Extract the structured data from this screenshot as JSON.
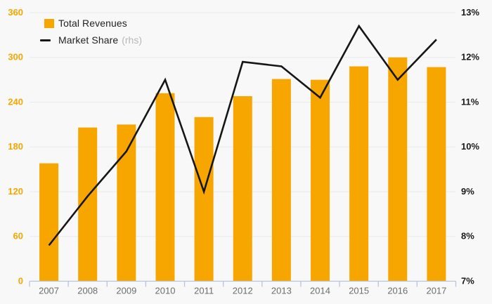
{
  "legend": {
    "total_revenues": "Total Revenues",
    "market_share": "Market Share",
    "rhs": "(rhs)"
  },
  "colors": {
    "bar": "#f7a600",
    "line": "#161616",
    "left_axis_label": "#f7a600",
    "right_axis_label": "#1a1a1a",
    "x_axis_label": "#6e6e6e",
    "gridline": "#eaeaea",
    "axis_line": "#b9c4d9",
    "background": "#f8f8f8",
    "legend_rhs": "#b8b8b8"
  },
  "chart_data": {
    "type": "bar",
    "subtype": "combo-bar-line",
    "title": "",
    "categories": [
      "2007",
      "2008",
      "2009",
      "2010",
      "2011",
      "2012",
      "2013",
      "2014",
      "2015",
      "2016",
      "2017"
    ],
    "series": [
      {
        "name": "Total Revenues",
        "type": "bar",
        "axis": "left",
        "values": [
          158,
          206,
          210,
          252,
          220,
          248,
          271,
          270,
          288,
          300,
          287
        ]
      },
      {
        "name": "Market Share (rhs)",
        "type": "line",
        "axis": "right",
        "values": [
          7.8,
          8.9,
          9.9,
          11.5,
          9.0,
          11.9,
          11.8,
          11.1,
          12.7,
          11.5,
          12.4
        ]
      }
    ],
    "left_axis": {
      "ticks": [
        0,
        60,
        120,
        180,
        240,
        300,
        360
      ],
      "labels": [
        "0",
        "60",
        "120",
        "180",
        "240",
        "300",
        "360"
      ],
      "range": [
        0,
        360
      ]
    },
    "right_axis": {
      "ticks": [
        7,
        8,
        9,
        10,
        11,
        12,
        13
      ],
      "labels": [
        "7%",
        "8%",
        "9%",
        "10%",
        "11%",
        "12%",
        "13%"
      ],
      "range": [
        7,
        13
      ]
    },
    "grid": true,
    "legend_position": "top-left"
  }
}
